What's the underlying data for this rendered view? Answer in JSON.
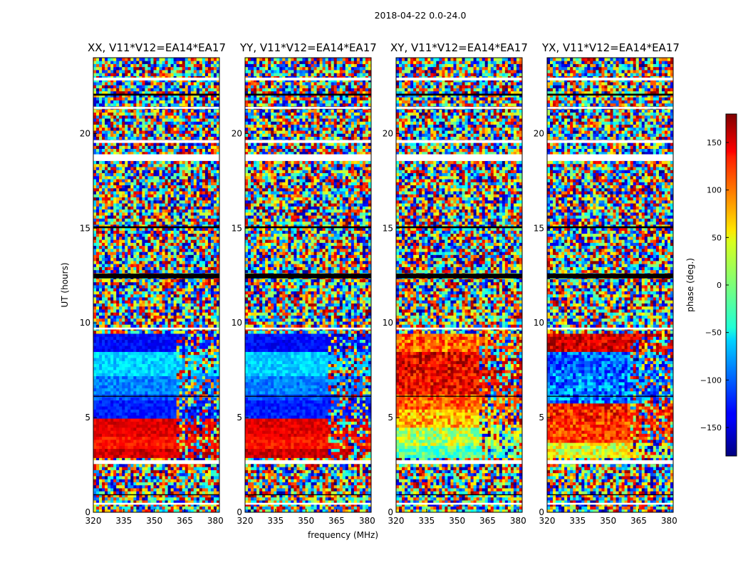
{
  "figure": {
    "suptitle": "2018-04-22 0.0-24.0",
    "ylabel": "UT (hours)",
    "xlabel": "frequency (MHz)",
    "colorbar_label": "phase (deg.)"
  },
  "chart_data": {
    "type": "heatmap",
    "x_range_mhz": [
      320,
      382
    ],
    "x_ticks": [
      320,
      335,
      350,
      365,
      380
    ],
    "y_range_hours": [
      0,
      24
    ],
    "y_ticks": [
      0,
      5,
      10,
      15,
      20
    ],
    "color_range_deg": [
      -180,
      180
    ],
    "colorbar_ticks": [
      150,
      100,
      50,
      0,
      -50,
      -100,
      -150
    ],
    "colormap": "jet",
    "panels": [
      {
        "title": "XX, V11*V12=EA14*EA17",
        "product": "XX"
      },
      {
        "title": "YY, V11*V12=EA14*EA17",
        "product": "YY"
      },
      {
        "title": "XY, V11*V12=EA14*EA17",
        "product": "XY"
      },
      {
        "title": "YX, V11*V12=EA14*EA17",
        "product": "YX"
      }
    ]
  }
}
